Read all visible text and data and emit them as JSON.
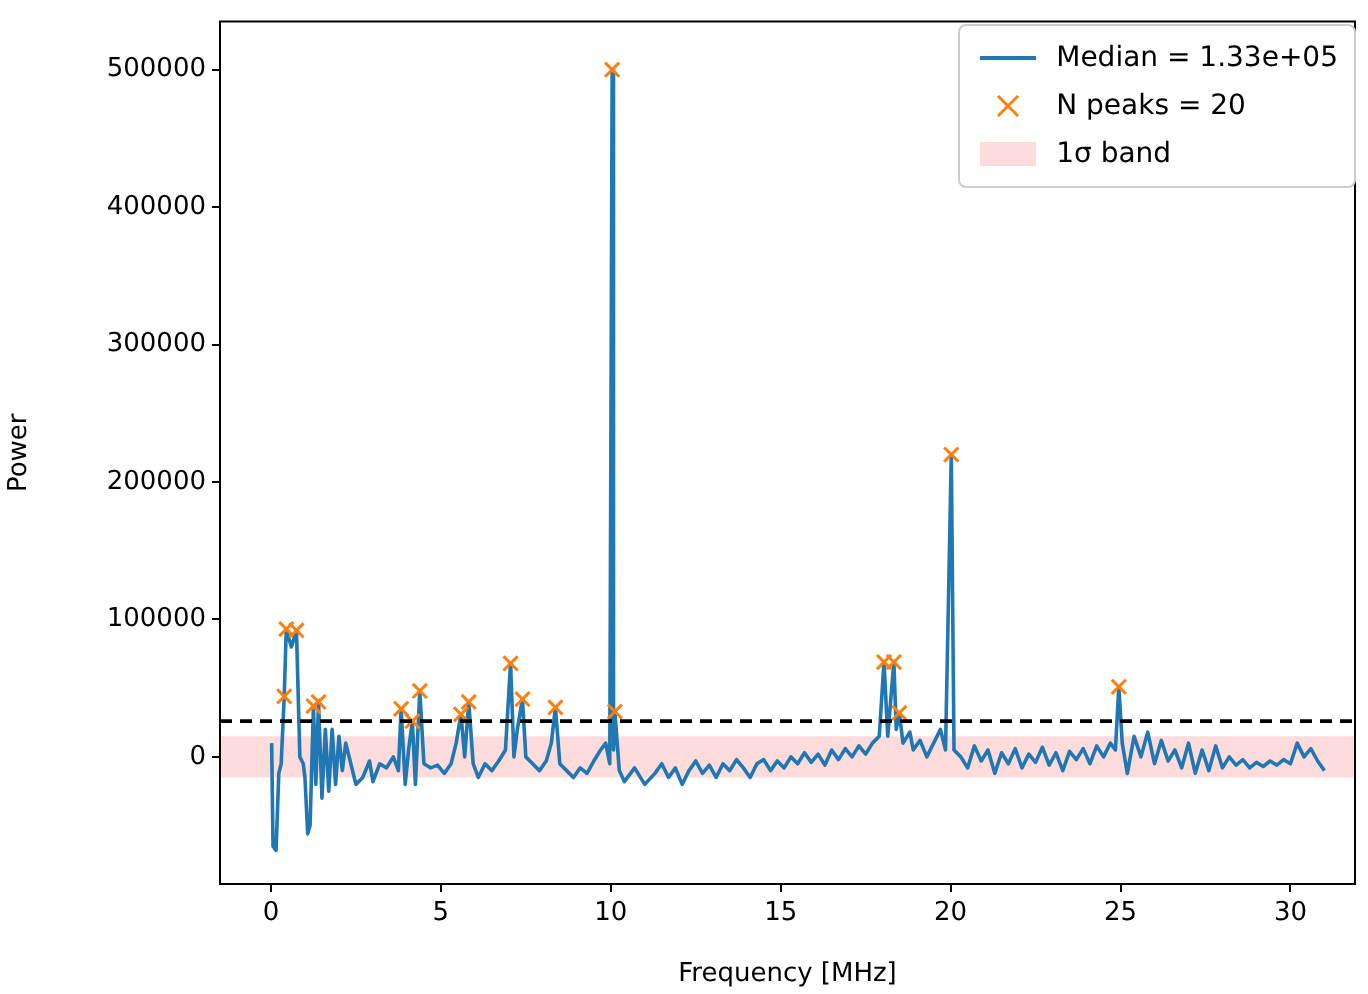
{
  "chart_data": {
    "type": "line",
    "xlabel": "Frequency [MHz]",
    "ylabel": "Power",
    "xlim": [
      -1.5,
      31.9
    ],
    "xticks": [
      0,
      5,
      10,
      15,
      20,
      25,
      30
    ],
    "ylim": [
      -92500,
      535000
    ],
    "yticks": [
      0,
      100000,
      200000,
      300000,
      400000,
      500000
    ],
    "legend": "top right",
    "series": [
      {
        "name": "Median = 1.33e+05",
        "color": "#1f77b4",
        "marker": "none",
        "line_style": "solid",
        "x": [
          0.02,
          0.06,
          0.15,
          0.23,
          0.3,
          0.39,
          0.45,
          0.6,
          0.75,
          0.85,
          0.95,
          1.0,
          1.08,
          1.15,
          1.25,
          1.32,
          1.4,
          1.5,
          1.6,
          1.7,
          1.8,
          1.9,
          2.0,
          2.1,
          2.2,
          2.35,
          2.5,
          2.7,
          2.9,
          3.0,
          3.2,
          3.4,
          3.6,
          3.75,
          3.83,
          3.95,
          4.05,
          4.16,
          4.25,
          4.38,
          4.5,
          4.7,
          4.9,
          5.1,
          5.3,
          5.45,
          5.59,
          5.7,
          5.82,
          5.95,
          6.1,
          6.3,
          6.5,
          6.7,
          6.9,
          7.05,
          7.15,
          7.25,
          7.4,
          7.5,
          7.7,
          7.9,
          8.1,
          8.25,
          8.37,
          8.5,
          8.7,
          8.9,
          9.1,
          9.3,
          9.5,
          9.7,
          9.85,
          9.97,
          10.04,
          10.08,
          10.12,
          10.25,
          10.4,
          10.7,
          11.0,
          11.3,
          11.5,
          11.7,
          11.9,
          12.1,
          12.3,
          12.5,
          12.7,
          12.9,
          13.1,
          13.3,
          13.5,
          13.7,
          13.9,
          14.1,
          14.3,
          14.5,
          14.7,
          14.9,
          15.1,
          15.3,
          15.5,
          15.7,
          15.9,
          16.1,
          16.3,
          16.5,
          16.7,
          16.9,
          17.1,
          17.3,
          17.5,
          17.7,
          17.9,
          18.04,
          18.15,
          18.33,
          18.4,
          18.49,
          18.6,
          18.8,
          18.9,
          19.1,
          19.3,
          19.5,
          19.7,
          19.85,
          20.02,
          20.1,
          20.3,
          20.5,
          20.7,
          20.9,
          21.1,
          21.3,
          21.5,
          21.7,
          21.9,
          22.1,
          22.3,
          22.5,
          22.7,
          22.9,
          23.1,
          23.3,
          23.5,
          23.7,
          23.9,
          24.1,
          24.3,
          24.5,
          24.7,
          24.85,
          24.95,
          25.05,
          25.2,
          25.4,
          25.6,
          25.8,
          26.0,
          26.2,
          26.4,
          26.6,
          26.8,
          27.0,
          27.2,
          27.4,
          27.6,
          27.8,
          28.0,
          28.2,
          28.4,
          28.6,
          28.8,
          29.0,
          29.2,
          29.4,
          29.6,
          29.8,
          30.0,
          30.2,
          30.4,
          30.6,
          30.8,
          31.0
        ],
        "values": [
          10000,
          -65000,
          -68000,
          -12000,
          -5000,
          44000,
          93000,
          80000,
          92000,
          0,
          -5000,
          -15000,
          -56000,
          -50000,
          37000,
          -20000,
          40000,
          -30000,
          20000,
          -25000,
          20000,
          -20000,
          15000,
          -10000,
          10000,
          -5000,
          -20000,
          -15000,
          -3000,
          -18000,
          -5000,
          -8000,
          0,
          -10000,
          35000,
          -20000,
          5000,
          26000,
          -20000,
          48000,
          -5000,
          -8000,
          -6000,
          -12000,
          -5000,
          10000,
          31000,
          0,
          40000,
          -5000,
          -15000,
          -5000,
          -10000,
          -3000,
          5000,
          68000,
          0,
          20000,
          42000,
          0,
          -5000,
          -10000,
          -3000,
          10000,
          36000,
          -5000,
          -10000,
          -15000,
          -8000,
          -12000,
          -3000,
          5000,
          10000,
          -5000,
          500000,
          5000,
          33000,
          -10000,
          -18000,
          -8000,
          -20000,
          -12000,
          -5000,
          -15000,
          -8000,
          -20000,
          -10000,
          -3000,
          -12000,
          -6000,
          -15000,
          -5000,
          -10000,
          -2000,
          -8000,
          -15000,
          -5000,
          -2000,
          -10000,
          -3000,
          -8000,
          0,
          -5000,
          3000,
          -4000,
          2000,
          -6000,
          5000,
          -2000,
          6000,
          0,
          8000,
          2000,
          10000,
          15000,
          69000,
          15000,
          69000,
          20000,
          32000,
          10000,
          18000,
          5000,
          12000,
          0,
          10000,
          20000,
          5000,
          220000,
          5000,
          0,
          -8000,
          8000,
          -3000,
          5000,
          -12000,
          3000,
          -5000,
          6000,
          -8000,
          2000,
          -4000,
          7000,
          -6000,
          3000,
          -10000,
          4000,
          -2000,
          6000,
          -5000,
          8000,
          0,
          10000,
          5000,
          51000,
          10000,
          -12000,
          15000,
          0,
          18000,
          -5000,
          12000,
          -3000,
          5000,
          -8000,
          10000,
          -12000,
          5000,
          -10000,
          8000,
          -8000,
          0,
          -6000,
          -2000,
          -8000,
          -4000,
          -7000,
          -3000,
          -6000,
          -2000,
          -5000,
          10000,
          0,
          6000,
          -3000,
          -10000
        ]
      },
      {
        "name": "N peaks = 20",
        "type": "scatter",
        "color": "#ff7f0e",
        "marker": "cross",
        "x": [
          0.39,
          0.45,
          0.75,
          1.25,
          1.4,
          3.83,
          4.16,
          4.38,
          5.59,
          5.82,
          7.05,
          7.4,
          8.37,
          10.04,
          10.12,
          18.04,
          18.33,
          18.49,
          20.02,
          24.95
        ],
        "values": [
          44000,
          93000,
          92000,
          37000,
          40000,
          35000,
          26000,
          48000,
          31000,
          40000,
          68000,
          42000,
          36000,
          500000,
          33000,
          69000,
          69000,
          32000,
          220000,
          51000
        ]
      }
    ],
    "ref_lines": [
      {
        "axis": "y",
        "value": 26000,
        "color": "#000000",
        "line_style": "dashed"
      }
    ],
    "bands": [
      {
        "axis": "y",
        "from": -15000,
        "to": 15000,
        "label": "1σ band",
        "color": "#ffdcdc"
      }
    ]
  }
}
